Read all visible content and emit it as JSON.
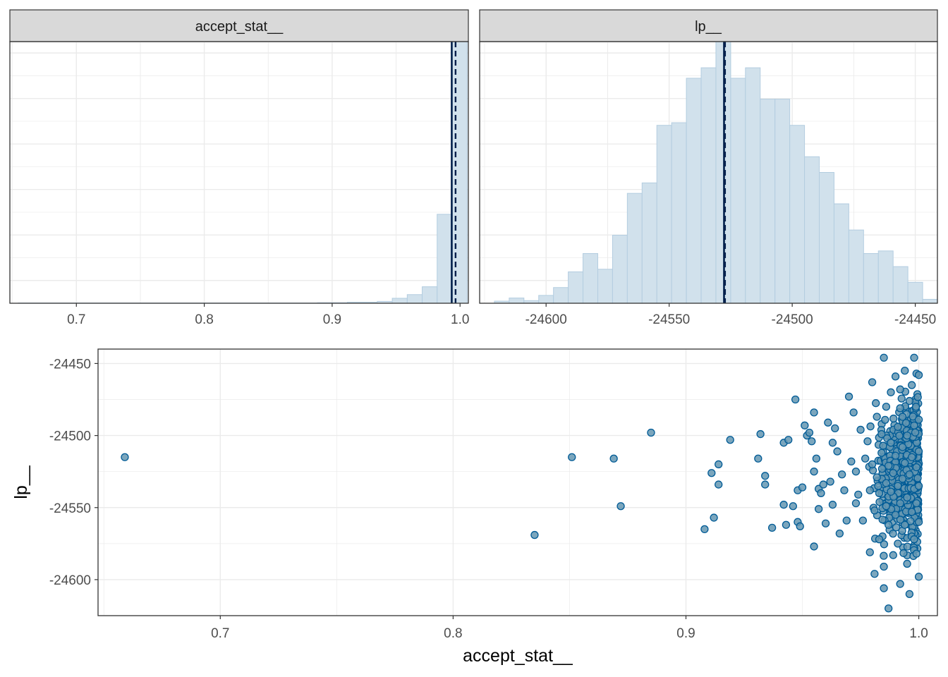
{
  "colors": {
    "bar_fill": "#d1e1ec",
    "bar_stroke": "#b3cde0",
    "mean_line": "#011f4b",
    "point_fill": "#6497b1",
    "point_stroke": "#005b96",
    "strip_bg": "#d9d9d9",
    "grid": "#ebebeb",
    "panel_border": "#333333",
    "axis_text": "#4d4d4d"
  },
  "chart_data": [
    {
      "id": "hist_accept",
      "type": "bar",
      "title": "accept_stat__",
      "xlim": [
        0.648,
        1.0065
      ],
      "ylim": [
        0,
        1
      ],
      "xticks": [
        0.7,
        0.8,
        0.9,
        1.0
      ],
      "xtick_labels": [
        "0.7",
        "0.8",
        "0.9",
        "1.0"
      ],
      "grid": true,
      "bin_width": 0.0117,
      "bins": [
        {
          "x0": 0.6545,
          "x1": 0.8885,
          "count": 0.001
        },
        {
          "x0": 0.8885,
          "x1": 0.9119,
          "count": 0.002
        },
        {
          "x0": 0.9119,
          "x1": 0.9353,
          "count": 0.004
        },
        {
          "x0": 0.9353,
          "x1": 0.947,
          "count": 0.007
        },
        {
          "x0": 0.947,
          "x1": 0.9587,
          "count": 0.019
        },
        {
          "x0": 0.9587,
          "x1": 0.9704,
          "count": 0.033
        },
        {
          "x0": 0.9704,
          "x1": 0.9821,
          "count": 0.063
        },
        {
          "x0": 0.9821,
          "x1": 0.9938,
          "count": 0.34
        },
        {
          "x0": 0.9938,
          "x1": 1.0055,
          "count": 1.0
        }
      ],
      "mean_line": 0.9935,
      "median_line": 0.9965
    },
    {
      "id": "hist_lp",
      "type": "bar",
      "title": "lp__",
      "xlim": [
        -24627,
        -24441
      ],
      "ylim": [
        0,
        1
      ],
      "xticks": [
        -24600,
        -24550,
        -24500,
        -24450
      ],
      "xtick_labels": [
        "-24600",
        "-24550",
        "-24500",
        "-24450"
      ],
      "grid": true,
      "bin_width": 6,
      "bins": [
        {
          "x": -24618,
          "count": 0.008
        },
        {
          "x": -24612,
          "count": 0.02
        },
        {
          "x": -24606,
          "count": 0.01
        },
        {
          "x": -24600,
          "count": 0.03
        },
        {
          "x": -24594,
          "count": 0.06
        },
        {
          "x": -24588,
          "count": 0.12
        },
        {
          "x": -24582,
          "count": 0.19
        },
        {
          "x": -24576,
          "count": 0.13
        },
        {
          "x": -24570,
          "count": 0.26
        },
        {
          "x": -24564,
          "count": 0.42
        },
        {
          "x": -24558,
          "count": 0.46
        },
        {
          "x": -24552,
          "count": 0.68
        },
        {
          "x": -24546,
          "count": 0.69
        },
        {
          "x": -24540,
          "count": 0.86
        },
        {
          "x": -24534,
          "count": 0.9
        },
        {
          "x": -24528,
          "count": 1.0
        },
        {
          "x": -24522,
          "count": 0.86
        },
        {
          "x": -24516,
          "count": 0.9
        },
        {
          "x": -24510,
          "count": 0.78
        },
        {
          "x": -24504,
          "count": 0.78
        },
        {
          "x": -24498,
          "count": 0.68
        },
        {
          "x": -24492,
          "count": 0.56
        },
        {
          "x": -24486,
          "count": 0.5
        },
        {
          "x": -24480,
          "count": 0.38
        },
        {
          "x": -24474,
          "count": 0.28
        },
        {
          "x": -24468,
          "count": 0.19
        },
        {
          "x": -24462,
          "count": 0.2
        },
        {
          "x": -24456,
          "count": 0.14
        },
        {
          "x": -24450,
          "count": 0.08
        },
        {
          "x": -24444,
          "count": 0.015
        }
      ],
      "mean_line": -24527.7,
      "median_line": -24527.3
    },
    {
      "id": "scatter",
      "type": "scatter",
      "title": "",
      "xlabel": "accept_stat__",
      "ylabel": "lp__",
      "xlim": [
        0.6475,
        1.008
      ],
      "ylim": [
        -24625,
        -24440
      ],
      "xticks": [
        0.7,
        0.8,
        0.9,
        1.0
      ],
      "xtick_labels": [
        "0.7",
        "0.8",
        "0.9",
        "1.0"
      ],
      "yticks": [
        -24450,
        -24500,
        -24550,
        -24600
      ],
      "ytick_labels": [
        "-24450",
        "-24500",
        "-24550",
        "-24600"
      ],
      "grid": true,
      "points": [
        [
          0.659,
          -24515
        ],
        [
          0.835,
          -24569
        ],
        [
          0.851,
          -24515
        ],
        [
          0.869,
          -24516
        ],
        [
          0.872,
          -24549
        ],
        [
          0.885,
          -24498
        ],
        [
          0.908,
          -24565
        ],
        [
          0.911,
          -24526
        ],
        [
          0.912,
          -24557
        ],
        [
          0.914,
          -24520
        ],
        [
          0.914,
          -24534
        ],
        [
          0.919,
          -24503
        ],
        [
          0.931,
          -24516
        ],
        [
          0.932,
          -24499
        ],
        [
          0.934,
          -24534
        ],
        [
          0.934,
          -24528
        ],
        [
          0.937,
          -24564
        ],
        [
          0.942,
          -24548
        ],
        [
          0.942,
          -24505
        ],
        [
          0.943,
          -24562
        ],
        [
          0.944,
          -24503
        ],
        [
          0.946,
          -24549
        ],
        [
          0.947,
          -24475
        ],
        [
          0.948,
          -24538
        ],
        [
          0.948,
          -24560
        ],
        [
          0.949,
          -24563
        ],
        [
          0.95,
          -24536
        ],
        [
          0.951,
          -24493
        ],
        [
          0.952,
          -24500
        ],
        [
          0.953,
          -24498
        ],
        [
          0.954,
          -24504
        ],
        [
          0.955,
          -24484
        ],
        [
          0.955,
          -24525
        ],
        [
          0.955,
          -24577
        ],
        [
          0.956,
          -24516
        ],
        [
          0.957,
          -24537
        ],
        [
          0.957,
          -24551
        ],
        [
          0.958,
          -24540
        ],
        [
          0.959,
          -24534
        ],
        [
          0.96,
          -24561
        ],
        [
          0.961,
          -24491
        ],
        [
          0.962,
          -24532
        ],
        [
          0.963,
          -24548
        ],
        [
          0.963,
          -24505
        ],
        [
          0.964,
          -24495
        ],
        [
          0.965,
          -24511
        ],
        [
          0.966,
          -24568
        ],
        [
          0.967,
          -24527
        ],
        [
          0.968,
          -24538
        ],
        [
          0.969,
          -24559
        ],
        [
          0.97,
          -24473
        ],
        [
          0.971,
          -24518
        ],
        [
          0.972,
          -24484
        ],
        [
          0.973,
          -24525
        ],
        [
          0.973,
          -24547
        ],
        [
          0.974,
          -24541
        ],
        [
          0.975,
          -24496
        ],
        [
          0.976,
          -24559
        ],
        [
          0.977,
          -24516
        ],
        [
          0.978,
          -24504
        ],
        [
          0.979,
          -24581
        ],
        [
          0.979,
          -24538
        ],
        [
          0.98,
          -24520
        ],
        [
          0.98,
          -24463
        ],
        [
          0.981,
          -24552
        ],
        [
          0.981,
          -24596
        ],
        [
          0.982,
          -24529
        ],
        [
          0.982,
          -24487
        ],
        [
          0.983,
          -24540
        ],
        [
          0.983,
          -24572
        ],
        [
          0.984,
          -24512
        ],
        [
          0.984,
          -24499
        ],
        [
          0.985,
          -24446
        ],
        [
          0.985,
          -24591
        ],
        [
          0.985,
          -24606
        ],
        [
          0.986,
          -24533
        ],
        [
          0.986,
          -24549
        ],
        [
          0.986,
          -24480
        ],
        [
          0.987,
          -24620
        ],
        [
          0.987,
          -24562
        ],
        [
          0.987,
          -24521
        ],
        [
          0.988,
          -24505
        ],
        [
          0.988,
          -24470
        ],
        [
          0.988,
          -24539
        ],
        [
          0.989,
          -24583
        ],
        [
          0.989,
          -24526
        ],
        [
          0.99,
          -24459
        ],
        [
          0.99,
          -24555
        ],
        [
          0.99,
          -24514
        ],
        [
          0.991,
          -24494
        ],
        [
          0.991,
          -24575
        ],
        [
          0.991,
          -24535
        ],
        [
          0.992,
          -24468
        ],
        [
          0.992,
          -24547
        ],
        [
          0.992,
          -24603
        ],
        [
          0.993,
          -24508
        ],
        [
          0.993,
          -24487
        ],
        [
          0.993,
          -24530
        ],
        [
          0.994,
          -24562
        ],
        [
          0.994,
          -24455
        ],
        [
          0.994,
          -24519
        ],
        [
          0.995,
          -24543
        ],
        [
          0.995,
          -24589
        ],
        [
          0.995,
          -24500
        ],
        [
          0.996,
          -24610
        ],
        [
          0.996,
          -24476
        ],
        [
          0.996,
          -24527
        ],
        [
          0.997,
          -24553
        ],
        [
          0.997,
          -24465
        ],
        [
          0.997,
          -24515
        ],
        [
          0.998,
          -24446
        ],
        [
          0.998,
          -24537
        ],
        [
          0.998,
          -24572
        ],
        [
          0.998,
          -24493
        ],
        [
          0.999,
          -24457
        ],
        [
          0.999,
          -24547
        ],
        [
          0.999,
          -24522
        ],
        [
          0.999,
          -24582
        ],
        [
          1.0,
          -24458
        ],
        [
          1.0,
          -24489
        ],
        [
          1.0,
          -24511
        ],
        [
          1.0,
          -24535
        ],
        [
          1.0,
          -24560
        ],
        [
          1.0,
          -24598
        ]
      ],
      "dense_cloud": {
        "x_range": [
          0.978,
          1.0
        ],
        "y_range": [
          -24598,
          -24456
        ],
        "n": 700
      }
    }
  ]
}
